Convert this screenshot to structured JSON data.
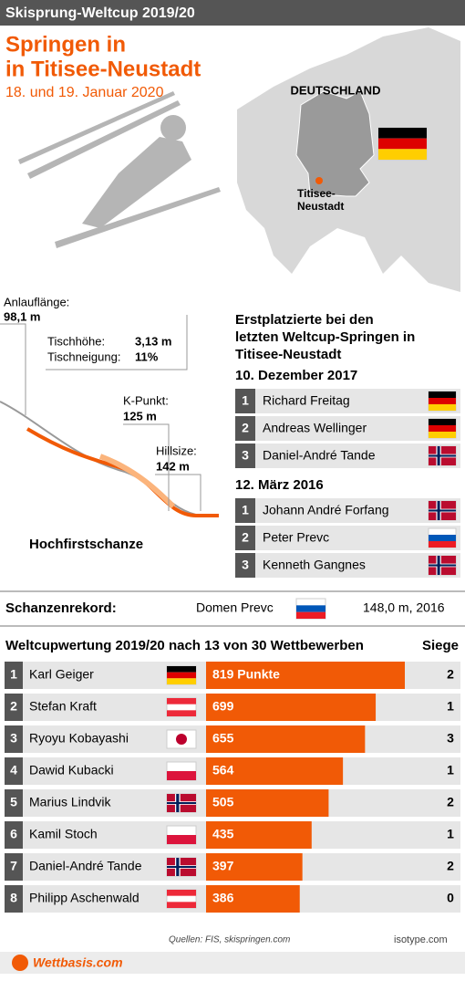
{
  "header": {
    "kicker": "Skisprung-Weltcup 2019/20",
    "title_lines": [
      "Springen in",
      "in Titisee-Neustadt"
    ],
    "date": "18. und 19. Januar 2020"
  },
  "map": {
    "country": "DEUTSCHLAND",
    "city_lines": [
      "Titisee-",
      "Neustadt"
    ]
  },
  "hill": {
    "inrun_label": "Anlauflänge:",
    "inrun": "98,1 m",
    "table_height_label": "Tischhöhe:",
    "table_height": "3,13 m",
    "table_incline_label": "Tischneigung:",
    "table_incline": "11%",
    "k_point_label": "K-Punkt:",
    "k_point": "125 m",
    "hillsize_label": "Hillsize:",
    "hillsize": "142 m",
    "name": "Hochfirstschanze"
  },
  "winners": {
    "title_lines": [
      "Erstplatzierte bei den",
      "letzten Weltcup-Springen in",
      "Titisee-Neustadt"
    ],
    "events": [
      {
        "date": "10. Dezember 2017",
        "podium": [
          {
            "rank": 1,
            "name": "Richard Freitag",
            "flag": "de"
          },
          {
            "rank": 2,
            "name": "Andreas Wellinger",
            "flag": "de"
          },
          {
            "rank": 3,
            "name": "Daniel-André Tande",
            "flag": "no"
          }
        ]
      },
      {
        "date": "12. März 2016",
        "podium": [
          {
            "rank": 1,
            "name": "Johann André Forfang",
            "flag": "no"
          },
          {
            "rank": 2,
            "name": "Peter Prevc",
            "flag": "si"
          },
          {
            "rank": 3,
            "name": "Kenneth Gangnes",
            "flag": "no"
          }
        ]
      }
    ]
  },
  "record": {
    "label": "Schanzenrekord:",
    "name": "Domen Prevc",
    "flag": "si",
    "value": "148,0 m, 2016"
  },
  "chart_data": {
    "type": "bar",
    "title": "Weltcupwertung 2019/20 nach 13 von 30 Wettbewerben",
    "color": "#f15a06",
    "ranks": [
      1,
      2,
      3,
      4,
      5,
      6,
      7,
      8
    ],
    "categories": [
      "Karl Geiger",
      "Stefan Kraft",
      "Ryoyu Kobayashi",
      "Dawid Kubacki",
      "Marius Lindvik",
      "Kamil Stoch",
      "Daniel-André Tande",
      "Philipp Aschenwald"
    ],
    "flags": [
      "de",
      "at",
      "jp",
      "pl",
      "no",
      "pl",
      "no",
      "at"
    ],
    "values": [
      819,
      699,
      655,
      564,
      505,
      435,
      397,
      386
    ],
    "value_labels": [
      "819 Punkte",
      "699",
      "655",
      "564",
      "505",
      "435",
      "397",
      "386"
    ],
    "wins_label": "Siege",
    "wins": [
      2,
      1,
      3,
      1,
      2,
      1,
      2,
      0
    ]
  },
  "footer": {
    "source": "Quellen: FIS, skispringen.com",
    "brand": "isotype.com",
    "logo": "Wettbasis.com"
  }
}
